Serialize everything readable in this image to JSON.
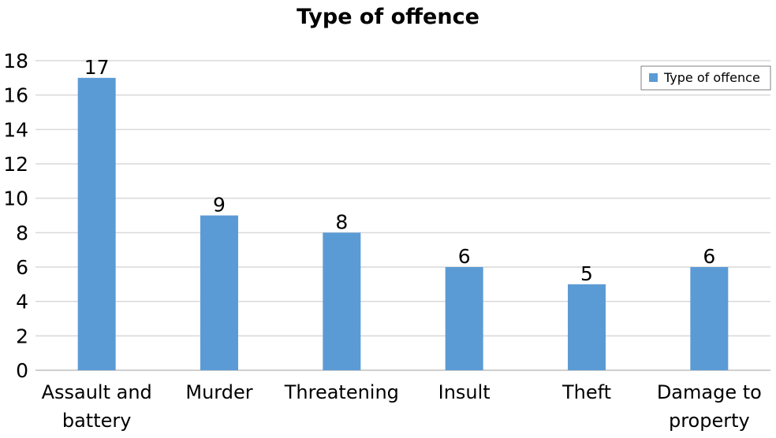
{
  "chart_data": {
    "type": "bar",
    "title": "Type of offence",
    "categories": [
      [
        "Assault and",
        "battery"
      ],
      [
        "Murder"
      ],
      [
        "Threatening"
      ],
      [
        "Insult"
      ],
      [
        "Theft"
      ],
      [
        "Damage to",
        "property"
      ]
    ],
    "series": [
      {
        "name": "Type of offence",
        "values": [
          17,
          9,
          8,
          6,
          5,
          6
        ],
        "color": "#5b9bd5"
      }
    ],
    "data_labels": [
      "17",
      "9",
      "8",
      "6",
      "5",
      "6"
    ],
    "y_ticks": [
      "0",
      "2",
      "4",
      "6",
      "8",
      "10",
      "12",
      "14",
      "16",
      "18"
    ],
    "ylim": [
      0,
      18
    ],
    "grid": true,
    "legend": "top-right",
    "xlabel": "",
    "ylabel": ""
  }
}
